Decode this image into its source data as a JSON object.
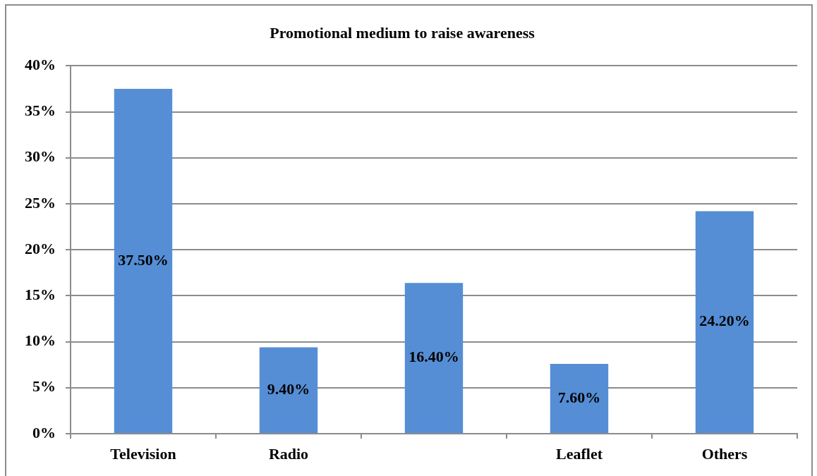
{
  "chart_data": {
    "type": "bar",
    "title": "Promotional medium to raise awareness",
    "categories": [
      "Television",
      "Radio",
      null,
      "Leaflet",
      "Others"
    ],
    "values": [
      37.5,
      9.4,
      16.4,
      7.6,
      24.2
    ],
    "value_labels": [
      "37.50%",
      "9.40%",
      "16.40%",
      "7.60%",
      "24.20%"
    ],
    "color": "#558ed5",
    "ylim": [
      0,
      40
    ],
    "yticks": [
      {
        "value": 0,
        "label": "0%"
      },
      {
        "value": 5,
        "label": "5%"
      },
      {
        "value": 10,
        "label": "10%"
      },
      {
        "value": 15,
        "label": "15%"
      },
      {
        "value": 20,
        "label": "20%"
      },
      {
        "value": 25,
        "label": "25%"
      },
      {
        "value": 30,
        "label": "30%"
      },
      {
        "value": 35,
        "label": "35%"
      },
      {
        "value": 40,
        "label": "40%"
      }
    ],
    "grid": "y"
  }
}
